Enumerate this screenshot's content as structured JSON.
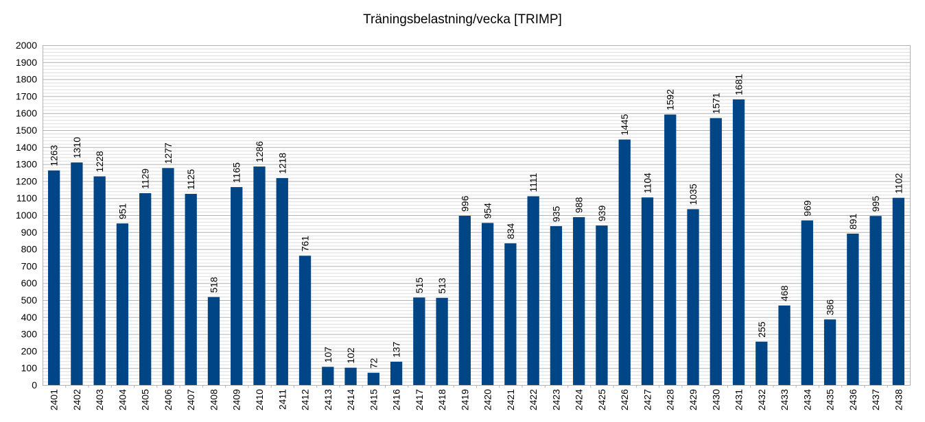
{
  "chart_data": {
    "type": "bar",
    "title": "Träningsbelastning/vecka [TRIMP]",
    "xlabel": "",
    "ylabel": "",
    "ylim": [
      0,
      2000
    ],
    "ytick_step": 100,
    "grid": true,
    "legend": "none",
    "bar_color": "#004586",
    "categories": [
      "2401",
      "2402",
      "2403",
      "2404",
      "2405",
      "2406",
      "2407",
      "2408",
      "2409",
      "2410",
      "2411",
      "2412",
      "2413",
      "2414",
      "2415",
      "2416",
      "2417",
      "2418",
      "2419",
      "2420",
      "2421",
      "2422",
      "2423",
      "2424",
      "2425",
      "2426",
      "2427",
      "2428",
      "2429",
      "2430",
      "2431",
      "2432",
      "2433",
      "2434",
      "2435",
      "2436",
      "2437",
      "2438"
    ],
    "values": [
      1263,
      1310,
      1228,
      951,
      1129,
      1277,
      1125,
      518,
      1165,
      1286,
      1218,
      761,
      107,
      102,
      72,
      137,
      515,
      513,
      996,
      954,
      834,
      1111,
      935,
      988,
      939,
      1445,
      1104,
      1592,
      1035,
      1571,
      1681,
      255,
      468,
      969,
      386,
      891,
      995,
      1102
    ]
  }
}
